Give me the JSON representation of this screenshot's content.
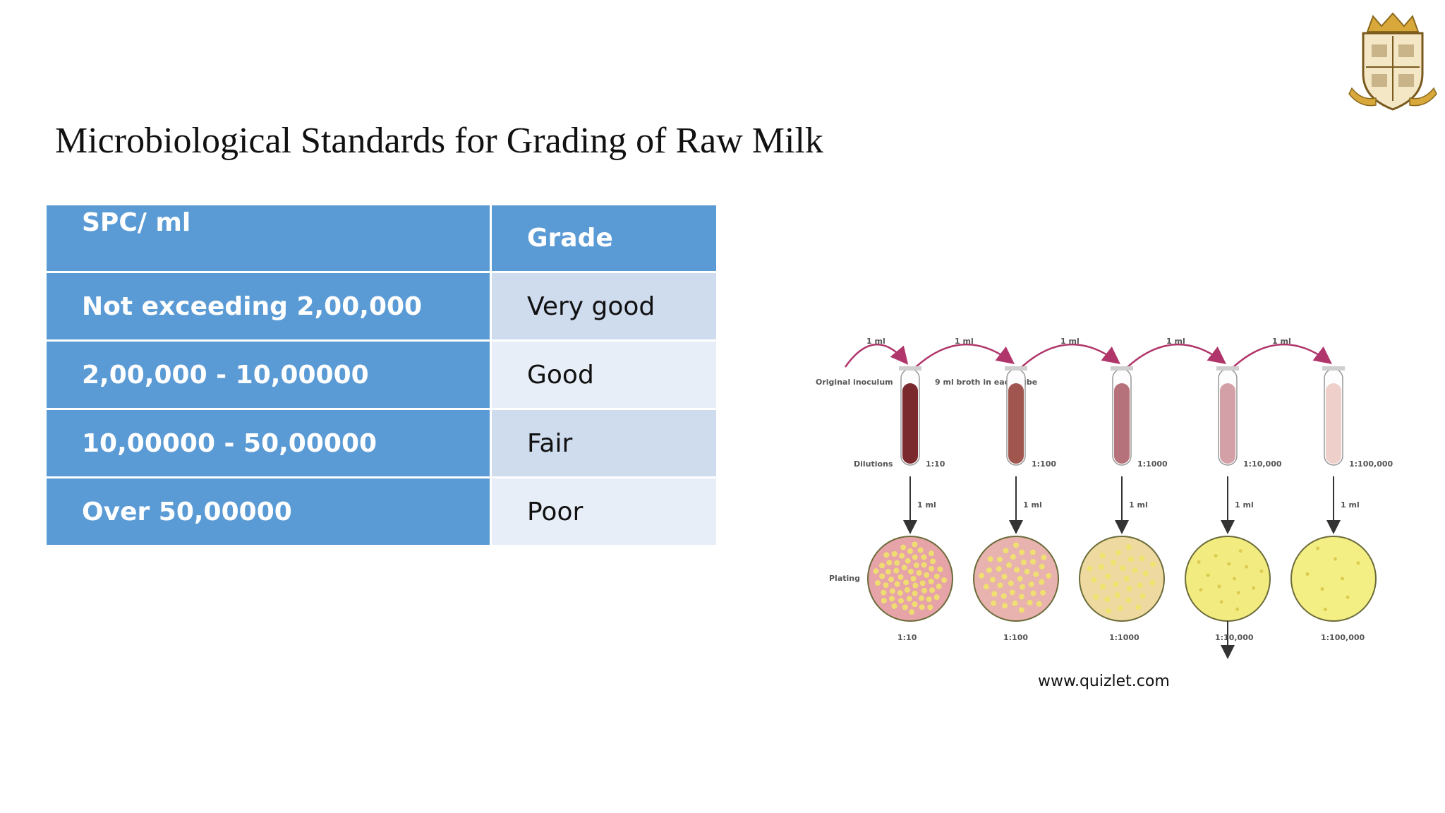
{
  "slide": {
    "title": "Microbiological Standards for Grading of Raw Milk",
    "credit": "www.quizlet.com"
  },
  "table": {
    "headers": [
      "SPC/ ml",
      "Grade"
    ],
    "rows": [
      [
        "Not exceeding 2,00,000",
        "Very good"
      ],
      [
        "2,00,000 - 10,00000",
        "Good"
      ],
      [
        "10,00000 - 50,00000",
        "Fair"
      ],
      [
        "Over 50,00000",
        "Poor"
      ]
    ]
  },
  "diagram": {
    "transfer_label": "1 ml",
    "original_inoculum": "Original inoculum",
    "broth_note": "9 ml broth in each tube",
    "dilutions_label": "Dilutions",
    "plating_label": "Plating",
    "tube_dilutions": [
      "1:10",
      "1:100",
      "1:1000",
      "1:10,000",
      "1:100,000"
    ],
    "plate_dilutions": [
      "1:10",
      "1:100",
      "1:1000",
      "1:10,000",
      "1:100,000"
    ],
    "tube_colors": [
      "#7a2a2c",
      "#a0564f",
      "#b5727a",
      "#d4a0a8",
      "#efcfc9"
    ],
    "plate_fill_colors": [
      "#e6a4a8",
      "#e8b2ae",
      "#eed9a0",
      "#f2ec80",
      "#f4ef84"
    ],
    "colony_color": "#f1e36a"
  },
  "icons": {
    "crest": "college-crest-icon"
  }
}
